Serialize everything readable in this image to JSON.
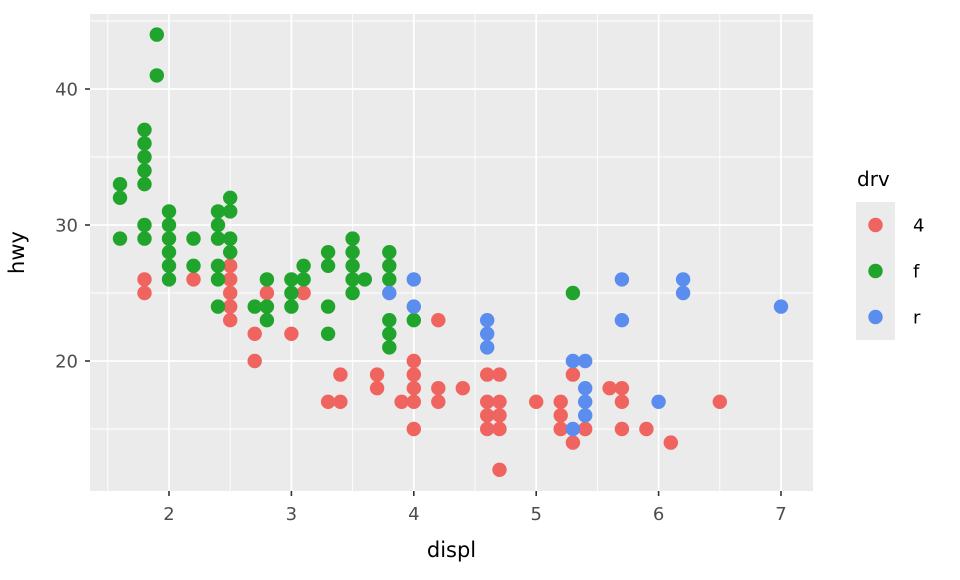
{
  "figure": {
    "background": "#ffffff",
    "panel_bg": "#EBEBEB",
    "grid_color": "#FFFFFF",
    "tick_mark_color": "#333333",
    "tick_label_color": "#4D4D4D",
    "axis_title_color": "#000000"
  },
  "chart_data": {
    "type": "scatter",
    "title": "",
    "xlabel": "displ",
    "ylabel": "hwy",
    "xlim": [
      1.3546,
      7.2614
    ],
    "ylim": [
      10.441,
      45.515
    ],
    "x_major_ticks": [
      2,
      3,
      4,
      5,
      6,
      7
    ],
    "y_major_ticks": [
      20,
      30,
      40
    ],
    "x_minor_ticks": [
      1.5,
      2.5,
      3.5,
      4.5,
      5.5,
      6.5
    ],
    "y_minor_ticks": [
      15,
      25,
      35,
      45
    ],
    "grid": "on",
    "point_radius": 7.2,
    "legend": {
      "title": "drv",
      "position": "right",
      "key_fill": "#EBEBEB",
      "entries": [
        {
          "label": "4",
          "color": "#F0645F"
        },
        {
          "label": "f",
          "color": "#21A42C"
        },
        {
          "label": "r",
          "color": "#5B8DEF"
        }
      ]
    },
    "series": [
      {
        "name": "4",
        "color": "#F0645F",
        "points": [
          [
            1.8,
            26
          ],
          [
            1.8,
            25
          ],
          [
            2.2,
            26
          ],
          [
            2.5,
            27
          ],
          [
            2.5,
            26
          ],
          [
            2.5,
            25
          ],
          [
            2.5,
            24
          ],
          [
            2.5,
            23
          ],
          [
            2.7,
            22
          ],
          [
            2.7,
            20
          ],
          [
            2.8,
            25
          ],
          [
            3.0,
            22
          ],
          [
            3.1,
            25
          ],
          [
            3.3,
            17
          ],
          [
            3.4,
            19
          ],
          [
            3.4,
            17
          ],
          [
            3.7,
            19
          ],
          [
            3.7,
            18
          ],
          [
            3.9,
            17
          ],
          [
            4.0,
            20
          ],
          [
            4.0,
            19
          ],
          [
            4.0,
            18
          ],
          [
            4.0,
            17
          ],
          [
            4.0,
            15
          ],
          [
            4.2,
            23
          ],
          [
            4.2,
            18
          ],
          [
            4.2,
            17
          ],
          [
            4.4,
            18
          ],
          [
            4.6,
            19
          ],
          [
            4.6,
            17
          ],
          [
            4.6,
            16
          ],
          [
            4.6,
            15
          ],
          [
            4.7,
            19
          ],
          [
            4.7,
            17
          ],
          [
            4.7,
            16
          ],
          [
            4.7,
            15
          ],
          [
            4.7,
            12
          ],
          [
            5.0,
            17
          ],
          [
            5.2,
            17
          ],
          [
            5.2,
            16
          ],
          [
            5.2,
            15
          ],
          [
            5.3,
            19
          ],
          [
            5.3,
            14
          ],
          [
            5.4,
            15
          ],
          [
            5.6,
            18
          ],
          [
            5.7,
            18
          ],
          [
            5.7,
            17
          ],
          [
            5.7,
            15
          ],
          [
            5.9,
            15
          ],
          [
            6.1,
            14
          ],
          [
            6.5,
            17
          ]
        ]
      },
      {
        "name": "f",
        "color": "#21A42C",
        "points": [
          [
            1.6,
            33
          ],
          [
            1.6,
            32
          ],
          [
            1.6,
            29
          ],
          [
            1.8,
            37
          ],
          [
            1.8,
            36
          ],
          [
            1.8,
            35
          ],
          [
            1.8,
            34
          ],
          [
            1.8,
            33
          ],
          [
            1.8,
            30
          ],
          [
            1.8,
            29
          ],
          [
            1.9,
            44
          ],
          [
            1.9,
            41
          ],
          [
            2.0,
            31
          ],
          [
            2.0,
            30
          ],
          [
            2.0,
            29
          ],
          [
            2.0,
            28
          ],
          [
            2.0,
            27
          ],
          [
            2.0,
            26
          ],
          [
            2.2,
            29
          ],
          [
            2.2,
            27
          ],
          [
            2.4,
            31
          ],
          [
            2.4,
            30
          ],
          [
            2.4,
            29
          ],
          [
            2.4,
            27
          ],
          [
            2.4,
            26
          ],
          [
            2.4,
            24
          ],
          [
            2.5,
            32
          ],
          [
            2.5,
            31
          ],
          [
            2.5,
            29
          ],
          [
            2.5,
            28
          ],
          [
            2.7,
            24
          ],
          [
            2.8,
            26
          ],
          [
            2.8,
            24
          ],
          [
            2.8,
            23
          ],
          [
            3.0,
            26
          ],
          [
            3.0,
            25
          ],
          [
            3.0,
            24
          ],
          [
            3.1,
            27
          ],
          [
            3.1,
            26
          ],
          [
            3.3,
            28
          ],
          [
            3.3,
            27
          ],
          [
            3.3,
            24
          ],
          [
            3.3,
            22
          ],
          [
            3.5,
            29
          ],
          [
            3.5,
            28
          ],
          [
            3.5,
            27
          ],
          [
            3.5,
            26
          ],
          [
            3.5,
            25
          ],
          [
            3.6,
            26
          ],
          [
            3.8,
            28
          ],
          [
            3.8,
            27
          ],
          [
            3.8,
            26
          ],
          [
            3.8,
            23
          ],
          [
            3.8,
            22
          ],
          [
            3.8,
            21
          ],
          [
            4.0,
            23
          ],
          [
            5.3,
            25
          ]
        ]
      },
      {
        "name": "r",
        "color": "#5B8DEF",
        "points": [
          [
            3.8,
            25
          ],
          [
            4.0,
            26
          ],
          [
            4.0,
            24
          ],
          [
            4.6,
            23
          ],
          [
            4.6,
            22
          ],
          [
            4.6,
            21
          ],
          [
            5.3,
            20
          ],
          [
            5.3,
            15
          ],
          [
            5.4,
            20
          ],
          [
            5.4,
            18
          ],
          [
            5.4,
            17
          ],
          [
            5.4,
            16
          ],
          [
            5.7,
            26
          ],
          [
            5.7,
            23
          ],
          [
            6.0,
            17
          ],
          [
            6.2,
            26
          ],
          [
            6.2,
            25
          ],
          [
            7.0,
            24
          ]
        ]
      }
    ]
  }
}
